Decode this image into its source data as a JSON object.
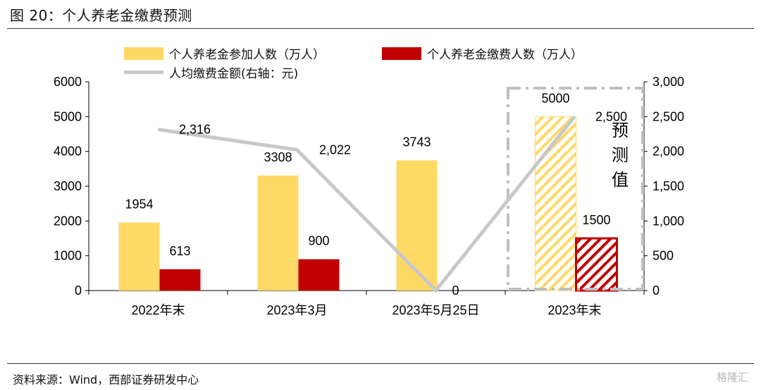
{
  "figure": {
    "title": "图 20：个人养老金缴费预测",
    "source": "资料来源：Wind，西部证券研发中心",
    "watermark": "格隆汇"
  },
  "chart_data": {
    "type": "bar",
    "categories": [
      "2022年末",
      "2023年3月",
      "2023年5月25日",
      "2023年末"
    ],
    "series": [
      {
        "name": "个人养老金参加人数（万人）",
        "type": "bar",
        "axis": "left",
        "color": "#FFD966",
        "values": [
          1954,
          3308,
          3743,
          5000
        ],
        "labels": [
          "1954",
          "3308",
          "3743",
          "5000"
        ]
      },
      {
        "name": "个人养老金缴费人数（万人）",
        "type": "bar",
        "axis": "left",
        "color": "#C00000",
        "values": [
          613,
          900,
          null,
          1500
        ],
        "labels": [
          "613",
          "900",
          "",
          "1500"
        ]
      },
      {
        "name": "人均缴费金额(右轴：元)",
        "type": "line",
        "axis": "right",
        "color": "#C8C8C8",
        "values": [
          2316,
          2022,
          0,
          2500
        ],
        "labels": [
          "2,316",
          "2,022",
          "0",
          "2,500"
        ]
      }
    ],
    "left_axis": {
      "min": 0,
      "max": 6000,
      "ticks": [
        "0",
        "1000",
        "2000",
        "3000",
        "4000",
        "5000",
        "6000"
      ]
    },
    "right_axis": {
      "min": 0,
      "max": 3000,
      "ticks": [
        "0",
        "500",
        "1,000",
        "1,500",
        "2,000",
        "2,500",
        "3,000"
      ]
    },
    "forecast_category": "2023年末",
    "forecast_label": [
      "预",
      "测",
      "值"
    ],
    "grid": false,
    "legend_position": "top"
  }
}
